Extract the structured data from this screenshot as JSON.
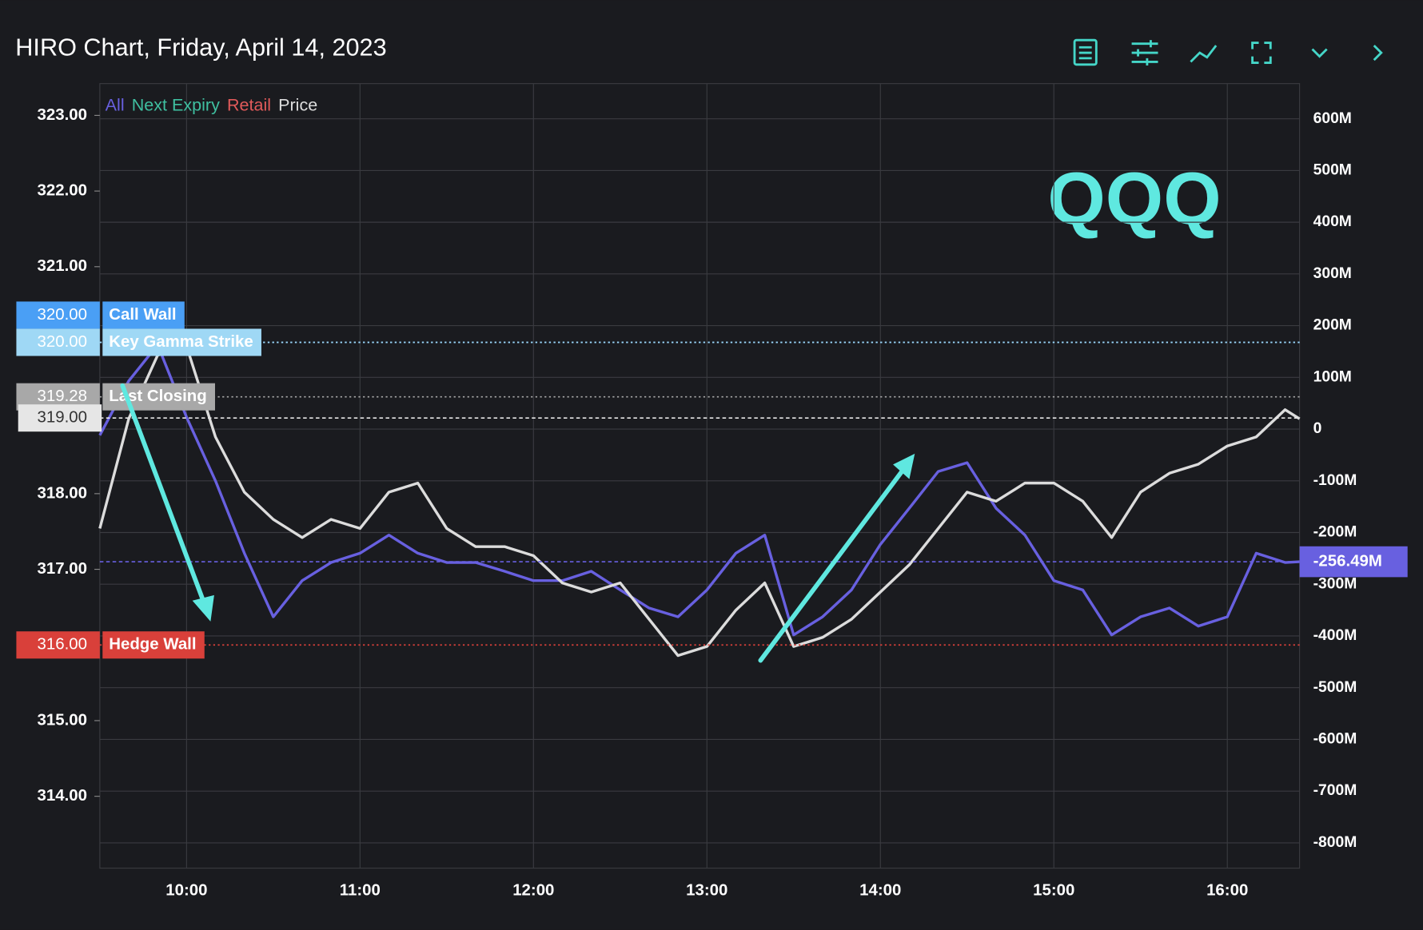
{
  "chart_data": {
    "type": "line",
    "title": "HIRO Chart, Friday, April 14, 2023",
    "watermark": "QQQ",
    "x": [
      "09:30",
      "09:40",
      "09:50",
      "10:00",
      "10:10",
      "10:20",
      "10:30",
      "10:40",
      "10:50",
      "11:00",
      "11:10",
      "11:20",
      "11:30",
      "11:40",
      "11:50",
      "12:00",
      "12:10",
      "12:20",
      "12:30",
      "12:40",
      "12:50",
      "13:00",
      "13:10",
      "13:20",
      "13:30",
      "13:40",
      "13:50",
      "14:00",
      "14:10",
      "14:20",
      "14:30",
      "14:40",
      "14:50",
      "15:00",
      "15:10",
      "15:20",
      "15:30",
      "15:40",
      "15:50",
      "16:00",
      "16:10",
      "16:20",
      "16:25"
    ],
    "xlim": [
      "09:30",
      "16:25"
    ],
    "xticks": [
      "10:00",
      "11:00",
      "12:00",
      "13:00",
      "14:00",
      "15:00",
      "16:00"
    ],
    "ylim": [
      313.05,
      323.42
    ],
    "yticks": [
      {
        "value": 314,
        "label": "314.00"
      },
      {
        "value": 315,
        "label": "315.00"
      },
      {
        "value": 316,
        "label": "316.00"
      },
      {
        "value": 317,
        "label": "317.00"
      },
      {
        "value": 318,
        "label": "318.00"
      },
      {
        "value": 319,
        "label": "319.00"
      },
      {
        "value": 320,
        "label": "320.00"
      },
      {
        "value": 321,
        "label": "321.00"
      },
      {
        "value": 322,
        "label": "322.00"
      },
      {
        "value": 323,
        "label": "323.00"
      }
    ],
    "y2lim": [
      -849,
      668
    ],
    "y2ticks": [
      {
        "value": -800,
        "label": "-800M"
      },
      {
        "value": -700,
        "label": "-700M"
      },
      {
        "value": -600,
        "label": "-600M"
      },
      {
        "value": -500,
        "label": "-500M"
      },
      {
        "value": -400,
        "label": "-400M"
      },
      {
        "value": -300,
        "label": "-300M"
      },
      {
        "value": -200,
        "label": "-200M"
      },
      {
        "value": -100,
        "label": "-100M"
      },
      0,
      {
        "value": 100,
        "label": "100M"
      },
      {
        "value": 200,
        "label": "200M"
      },
      {
        "value": 300,
        "label": "300M"
      },
      {
        "value": 400,
        "label": "400M"
      },
      {
        "value": 500,
        "label": "500M"
      },
      {
        "value": 600,
        "label": "600M"
      }
    ],
    "grid": true,
    "series": [
      {
        "name": "All",
        "color": "#6860e0",
        "axis": "y2",
        "values": [
          -12,
          93,
          163,
          23,
          -100,
          -240,
          -363,
          -293,
          -258,
          -240,
          -205,
          -240,
          -258,
          -258,
          -275,
          -293,
          -293,
          -275,
          -311,
          -346,
          -363,
          -311,
          -240,
          -205,
          -398,
          -363,
          -311,
          -223,
          -153,
          -82,
          -65,
          -153,
          -205,
          -293,
          -311,
          -398,
          -363,
          -346,
          -381,
          -363,
          -240,
          -258,
          -256.49
        ]
      },
      {
        "name": "Next Expiry",
        "color": "#3fbfa0",
        "axis": "y2",
        "values": [
          null,
          null,
          null,
          null,
          null,
          null,
          null,
          null,
          null,
          null,
          null,
          null,
          null,
          null,
          null,
          null,
          null,
          null,
          null,
          null,
          null,
          null,
          null,
          null,
          null,
          null,
          null,
          null,
          null,
          null,
          null,
          null,
          null,
          null,
          null,
          null,
          null,
          null,
          null,
          null,
          null,
          null,
          null
        ]
      },
      {
        "name": "Retail",
        "color": "#e05a5a",
        "axis": "y2",
        "values": [
          null,
          null,
          null,
          null,
          null,
          null,
          null,
          null,
          null,
          null,
          null,
          null,
          null,
          null,
          null,
          null,
          null,
          null,
          null,
          null,
          null,
          null,
          null,
          null,
          null,
          null,
          null,
          null,
          null,
          null,
          null,
          null,
          null,
          null,
          null,
          null,
          null,
          null,
          null,
          null,
          null,
          null,
          null
        ]
      },
      {
        "name": "Price",
        "color": "#dcdcdc",
        "values": [
          317.54,
          318.99,
          319.83,
          319.95,
          318.75,
          318.02,
          317.66,
          317.42,
          317.66,
          317.54,
          318.02,
          318.14,
          317.54,
          317.3,
          317.3,
          317.18,
          316.82,
          316.7,
          316.82,
          316.34,
          315.86,
          315.98,
          316.46,
          316.82,
          315.98,
          316.1,
          316.34,
          316.7,
          317.06,
          317.54,
          318.02,
          317.9,
          318.14,
          318.14,
          317.9,
          317.42,
          318.02,
          318.27,
          318.39,
          318.63,
          318.75,
          319.11,
          318.99
        ]
      }
    ],
    "levels": [
      {
        "name": "Call Wall",
        "value": 320,
        "value_label": "320.00",
        "color": "#4a9ff5"
      },
      {
        "name": "Key Gamma Strike",
        "value": 320,
        "value_label": "320.00",
        "color": "#9fd8f5"
      },
      {
        "name": "Last Closing",
        "value": 319.28,
        "value_label": "319.28",
        "color": "#a8a8a8"
      },
      {
        "name": "Hedge Wall",
        "value": 316,
        "value_label": "316.00",
        "color": "#d9403a"
      }
    ],
    "markers": [
      {
        "axis": "y",
        "value": 319,
        "label": "319.00",
        "color": "#e6e6e6"
      },
      {
        "axis": "y2",
        "value": -256.49,
        "label": "-256.49M",
        "color": "#6860e0"
      }
    ]
  }
}
